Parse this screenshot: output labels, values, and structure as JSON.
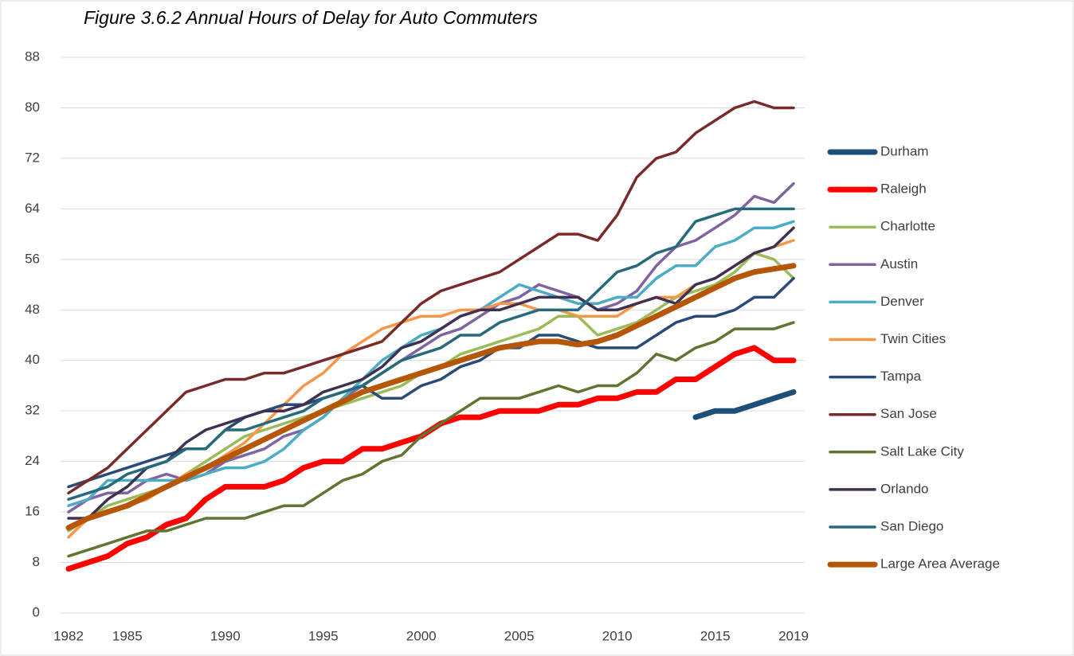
{
  "chart_data": {
    "type": "line",
    "title": "Figure 3.6.2  Annual Hours of Delay for Auto Commuters",
    "x": [
      1982,
      1983,
      1984,
      1985,
      1986,
      1987,
      1988,
      1989,
      1990,
      1991,
      1992,
      1993,
      1994,
      1995,
      1996,
      1997,
      1998,
      1999,
      2000,
      2001,
      2002,
      2003,
      2004,
      2005,
      2006,
      2007,
      2008,
      2009,
      2010,
      2011,
      2012,
      2013,
      2014,
      2015,
      2016,
      2017,
      2018,
      2019
    ],
    "xlim": [
      1982,
      2019
    ],
    "xticks": [
      1982,
      1985,
      1990,
      1995,
      2000,
      2005,
      2010,
      2015,
      2019
    ],
    "ylim": [
      0,
      88
    ],
    "yticks": [
      0,
      8,
      16,
      24,
      32,
      40,
      48,
      56,
      64,
      72,
      80,
      88
    ],
    "grid": true,
    "legend": "right",
    "series": [
      {
        "name": "Durham",
        "color": "#1f4e79",
        "line_width": 7,
        "values": [
          null,
          null,
          null,
          null,
          null,
          null,
          null,
          null,
          null,
          null,
          null,
          null,
          null,
          null,
          null,
          null,
          null,
          null,
          null,
          null,
          null,
          null,
          null,
          null,
          null,
          null,
          null,
          null,
          null,
          null,
          null,
          null,
          31,
          32,
          32,
          33,
          34,
          35
        ]
      },
      {
        "name": "Raleigh",
        "color": "#ff0000",
        "line_width": 7,
        "values": [
          7,
          8,
          9,
          11,
          12,
          14,
          15,
          18,
          20,
          20,
          20,
          21,
          23,
          24,
          24,
          26,
          26,
          27,
          28,
          30,
          31,
          31,
          32,
          32,
          32,
          33,
          33,
          34,
          34,
          35,
          35,
          37,
          37,
          39,
          41,
          42,
          40,
          40
        ]
      },
      {
        "name": "Charlotte",
        "color": "#9bbb59",
        "line_width": 3.5,
        "values": [
          13,
          15,
          17,
          18,
          19,
          20,
          22,
          24,
          26,
          28,
          29,
          30,
          31,
          32,
          33,
          34,
          35,
          36,
          38,
          39,
          41,
          42,
          43,
          44,
          45,
          47,
          47,
          44,
          45,
          46,
          48,
          50,
          51,
          52,
          54,
          57,
          56,
          53
        ]
      },
      {
        "name": "Austin",
        "color": "#8064a2",
        "line_width": 3.5,
        "values": [
          16,
          18,
          19,
          19,
          21,
          22,
          21,
          22,
          24,
          25,
          26,
          28,
          29,
          31,
          34,
          36,
          38,
          40,
          42,
          44,
          45,
          47,
          49,
          50,
          52,
          51,
          50,
          48,
          49,
          51,
          55,
          58,
          59,
          61,
          63,
          66,
          65,
          68
        ]
      },
      {
        "name": "Denver",
        "color": "#4bacc6",
        "line_width": 3.5,
        "values": [
          17,
          18,
          21,
          21,
          21,
          21,
          21,
          22,
          23,
          23,
          24,
          26,
          29,
          31,
          34,
          37,
          40,
          42,
          44,
          45,
          47,
          48,
          50,
          52,
          51,
          50,
          49,
          49,
          50,
          50,
          53,
          55,
          55,
          58,
          59,
          61,
          61,
          62
        ]
      },
      {
        "name": "Twin Cities",
        "color": "#f79646",
        "line_width": 3.5,
        "values": [
          12,
          15,
          16,
          17,
          18,
          20,
          22,
          23,
          25,
          27,
          30,
          33,
          36,
          38,
          41,
          43,
          45,
          46,
          47,
          47,
          48,
          48,
          49,
          49,
          48,
          48,
          47,
          47,
          47,
          49,
          50,
          50,
          52,
          53,
          55,
          57,
          58,
          59
        ]
      },
      {
        "name": "Tampa",
        "color": "#2a4a7a",
        "line_width": 3.5,
        "values": [
          20,
          21,
          22,
          23,
          24,
          25,
          26,
          26,
          29,
          31,
          32,
          33,
          33,
          34,
          35,
          36,
          34,
          34,
          36,
          37,
          39,
          40,
          42,
          42,
          44,
          44,
          43,
          42,
          42,
          42,
          44,
          46,
          47,
          47,
          48,
          50,
          50,
          53
        ]
      },
      {
        "name": "San Jose",
        "color": "#772c2a",
        "line_width": 3.5,
        "values": [
          19,
          21,
          23,
          26,
          29,
          32,
          35,
          36,
          37,
          37,
          38,
          38,
          39,
          40,
          41,
          42,
          43,
          46,
          49,
          51,
          52,
          53,
          54,
          56,
          58,
          60,
          60,
          59,
          63,
          69,
          72,
          73,
          76,
          78,
          80,
          81,
          80,
          80
        ]
      },
      {
        "name": "Salt Lake City",
        "color": "#5f7530",
        "line_width": 3.5,
        "values": [
          9,
          10,
          11,
          12,
          13,
          13,
          14,
          15,
          15,
          15,
          16,
          17,
          17,
          19,
          21,
          22,
          24,
          25,
          28,
          30,
          32,
          34,
          34,
          34,
          35,
          36,
          35,
          36,
          36,
          38,
          41,
          40,
          42,
          43,
          45,
          45,
          45,
          46
        ]
      },
      {
        "name": "Orlando",
        "color": "#403152",
        "line_width": 3.5,
        "values": [
          15,
          15,
          18,
          20,
          23,
          24,
          27,
          29,
          30,
          31,
          32,
          32,
          33,
          35,
          36,
          37,
          39,
          42,
          43,
          45,
          47,
          48,
          48,
          49,
          50,
          50,
          50,
          48,
          48,
          49,
          50,
          49,
          52,
          53,
          55,
          57,
          58,
          61
        ]
      },
      {
        "name": "San Diego",
        "color": "#276a7c",
        "line_width": 3.5,
        "values": [
          18,
          19,
          20,
          22,
          23,
          24,
          26,
          26,
          29,
          29,
          30,
          31,
          32,
          34,
          35,
          36,
          38,
          40,
          41,
          42,
          44,
          44,
          46,
          47,
          48,
          48,
          48,
          51,
          54,
          55,
          57,
          58,
          62,
          63,
          64,
          64,
          64,
          64
        ]
      },
      {
        "name": "Large Area Average",
        "color": "#b65708",
        "line_width": 7,
        "values": [
          13.5,
          15,
          16,
          17,
          18.5,
          20,
          21.5,
          23,
          24.5,
          26,
          27.5,
          29,
          30.5,
          32,
          33.5,
          35,
          36,
          37,
          38,
          39,
          40,
          41,
          42,
          42.5,
          43,
          43,
          42.5,
          43,
          44,
          45.5,
          47,
          48.5,
          50,
          51.5,
          53,
          54,
          54.5,
          55
        ]
      }
    ]
  }
}
